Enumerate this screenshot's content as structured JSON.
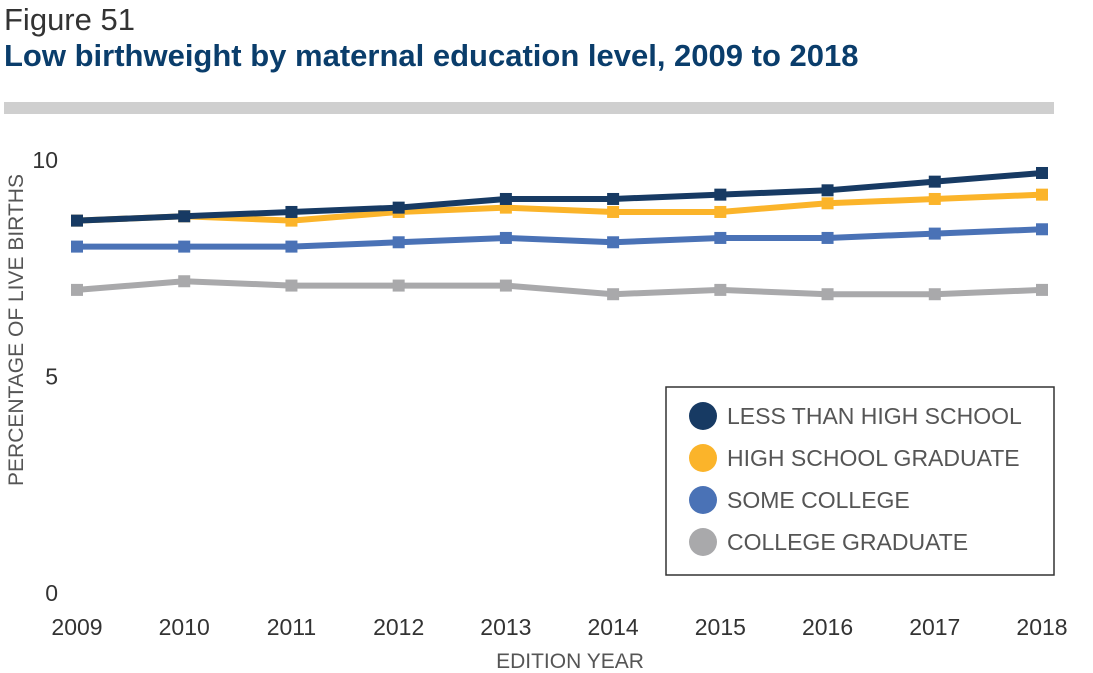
{
  "figure_label": "Figure 51",
  "title": "Low birthweight by maternal education level, 2009 to 2018",
  "chart_data": {
    "type": "line",
    "x": [
      "2009",
      "2010",
      "2011",
      "2012",
      "2013",
      "2014",
      "2015",
      "2016",
      "2017",
      "2018"
    ],
    "series": [
      {
        "name": "LESS THAN HIGH SCHOOL",
        "color": "#173a63",
        "values": [
          8.6,
          8.7,
          8.8,
          8.9,
          9.1,
          9.1,
          9.2,
          9.3,
          9.5,
          9.7
        ]
      },
      {
        "name": "HIGH SCHOOL GRADUATE",
        "color": "#fbb42a",
        "values": [
          8.6,
          8.7,
          8.6,
          8.8,
          8.9,
          8.8,
          8.8,
          9.0,
          9.1,
          9.2
        ]
      },
      {
        "name": "SOME COLLEGE",
        "color": "#4a72b6",
        "values": [
          8.0,
          8.0,
          8.0,
          8.1,
          8.2,
          8.1,
          8.2,
          8.2,
          8.3,
          8.4
        ]
      },
      {
        "name": "COLLEGE GRADUATE",
        "color": "#a9a9ab",
        "values": [
          7.0,
          7.2,
          7.1,
          7.1,
          7.1,
          6.9,
          7.0,
          6.9,
          6.9,
          7.0
        ]
      }
    ],
    "yticks": [
      "0",
      "5",
      "10"
    ],
    "ylim": [
      0,
      10
    ],
    "xlabel": "EDITION YEAR",
    "ylabel": "PERCENTAGE OF LIVE BIRTHS",
    "legend_position": "bottom-right",
    "grid": false
  }
}
